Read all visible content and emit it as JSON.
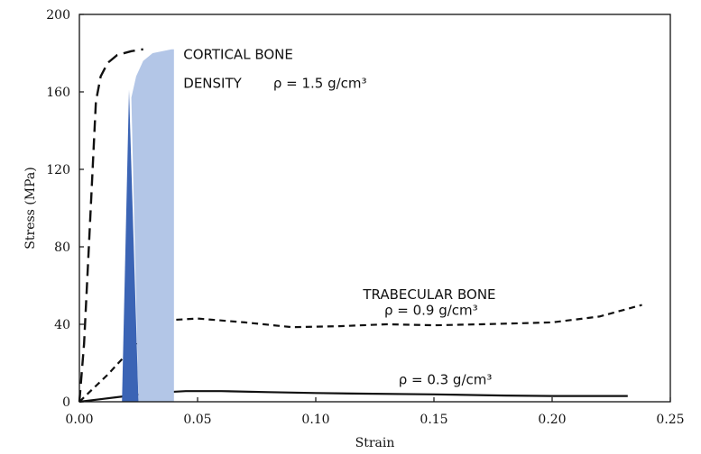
{
  "chart_data": {
    "type": "line",
    "title": "",
    "xlabel": "Strain",
    "ylabel": "Stress (MPa)",
    "xlim": [
      0,
      0.25
    ],
    "ylim": [
      0,
      200
    ],
    "x_ticks": [
      0,
      0.05,
      0.1,
      0.15,
      0.2,
      0.25
    ],
    "x_tick_labels": [
      "0.00",
      "0.05",
      "0.10",
      "0.15",
      "0.20",
      "0.25"
    ],
    "y_ticks": [
      0,
      40,
      80,
      120,
      160,
      200
    ],
    "y_tick_labels": [
      "0",
      "40",
      "80",
      "120",
      "160",
      "200"
    ],
    "grid": false,
    "legend": "none",
    "series": [
      {
        "style": "long-dash",
        "color": "#111111",
        "points": [
          [
            0.0,
            0
          ],
          [
            0.002,
            30
          ],
          [
            0.004,
            80
          ],
          [
            0.006,
            130
          ],
          [
            0.007,
            155
          ],
          [
            0.009,
            168
          ],
          [
            0.012,
            175
          ],
          [
            0.016,
            179
          ],
          [
            0.022,
            181
          ],
          [
            0.027,
            182
          ]
        ]
      },
      {
        "style": "short-dash",
        "color": "#111111",
        "points": [
          [
            0.0,
            0
          ],
          [
            0.006,
            7
          ],
          [
            0.012,
            14
          ],
          [
            0.018,
            22
          ],
          [
            0.024,
            30
          ],
          [
            0.03,
            37
          ],
          [
            0.036,
            42
          ],
          [
            0.05,
            43
          ],
          [
            0.07,
            41
          ],
          [
            0.09,
            38.5
          ],
          [
            0.11,
            39
          ],
          [
            0.13,
            40
          ],
          [
            0.15,
            39.5
          ],
          [
            0.17,
            40
          ],
          [
            0.2,
            41
          ],
          [
            0.22,
            44
          ],
          [
            0.238,
            50
          ]
        ]
      },
      {
        "style": "solid",
        "color": "#111111",
        "points": [
          [
            0.0,
            0
          ],
          [
            0.01,
            1.5
          ],
          [
            0.02,
            3
          ],
          [
            0.03,
            4.5
          ],
          [
            0.045,
            5.5
          ],
          [
            0.06,
            5.5
          ],
          [
            0.08,
            5
          ],
          [
            0.1,
            4.5
          ],
          [
            0.12,
            4.2
          ],
          [
            0.15,
            3.8
          ],
          [
            0.18,
            3.2
          ],
          [
            0.2,
            3
          ],
          [
            0.232,
            3
          ]
        ]
      }
    ],
    "annotations": [
      {
        "text": "CORTICAL BONE",
        "x": 0.044,
        "y": 177
      },
      {
        "text": "DENSITY",
        "x": 0.044,
        "y": 162
      },
      {
        "text": "ρ = 1.5 g/cm³",
        "x": 0.082,
        "y": 162
      },
      {
        "text": "TRABECULAR BONE",
        "x": 0.12,
        "y": 53
      },
      {
        "text": "ρ = 0.9 g/cm³",
        "x": 0.129,
        "y": 45
      },
      {
        "text": "ρ = 0.3 g/cm³",
        "x": 0.135,
        "y": 9
      }
    ],
    "shapes": [
      {
        "kind": "triangle",
        "color": "#3b64b5",
        "points": [
          [
            0.018,
            0
          ],
          [
            0.021,
            161
          ],
          [
            0.025,
            0
          ]
        ]
      },
      {
        "kind": "area",
        "color": "#b3c6e7",
        "points": [
          [
            0.025,
            0
          ],
          [
            0.022,
            157
          ],
          [
            0.024,
            168
          ],
          [
            0.027,
            176
          ],
          [
            0.031,
            180
          ],
          [
            0.039,
            182
          ],
          [
            0.04,
            182
          ],
          [
            0.04,
            0
          ]
        ]
      }
    ]
  }
}
